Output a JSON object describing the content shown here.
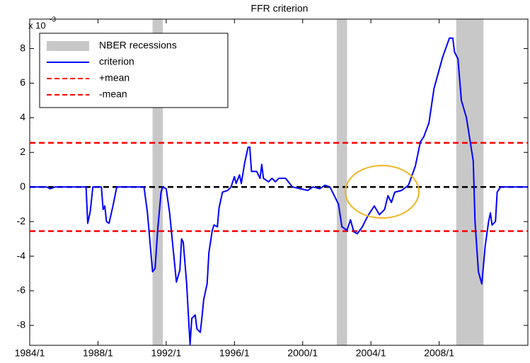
{
  "chart_data": {
    "type": "line",
    "title": "FFR criterion",
    "y_multiplier": {
      "base": "x 10",
      "exponent": "-3"
    },
    "xlim": [
      1984,
      2013.2
    ],
    "ylim": [
      -9.15,
      9.7
    ],
    "xticks": [
      {
        "value": 1984,
        "label": "1984/1"
      },
      {
        "value": 1988,
        "label": "1988/1"
      },
      {
        "value": 1992,
        "label": "1992/1"
      },
      {
        "value": 1996,
        "label": "1996/1"
      },
      {
        "value": 2000,
        "label": "2000/1"
      },
      {
        "value": 2004,
        "label": "2004/1"
      },
      {
        "value": 2008,
        "label": "2008/1"
      }
    ],
    "yticks": [
      -8,
      -6,
      -4,
      -2,
      0,
      2,
      4,
      6,
      8
    ],
    "legend": "upper left",
    "recessions": {
      "name": "NBER recessions",
      "color": "#c8c8c8",
      "ranges": [
        [
          1991.2,
          1991.8
        ],
        [
          2002.0,
          2002.6
        ],
        [
          2009.0,
          2010.6
        ]
      ]
    },
    "hlines": [
      {
        "name": "+mean",
        "color": "#ff0000",
        "value": 2.55
      },
      {
        "name": "-mean",
        "color": "#ff0000",
        "value": -2.55
      },
      {
        "color": "#000000",
        "value": 0
      }
    ],
    "series": [
      {
        "name": "criterion",
        "color": "#0000ff",
        "x": [
          1984,
          1985,
          1985.2,
          1985.5,
          1987.3,
          1987.4,
          1987.55,
          1987.7,
          1988.2,
          1988.3,
          1988.4,
          1988.5,
          1988.65,
          1988.9,
          1989.1,
          1990.7,
          1990.9,
          1991.2,
          1991.35,
          1991.5,
          1991.7,
          1991.8,
          1992.0,
          1992.2,
          1992.6,
          1992.8,
          1992.9,
          1993.0,
          1993.2,
          1993.3,
          1993.4,
          1993.5,
          1993.7,
          1993.8,
          1994.0,
          1994.1,
          1994.2,
          1994.4,
          1994.5,
          1994.7,
          1994.8,
          1995.0,
          1995.1,
          1995.3,
          1995.6,
          1995.8,
          1996.0,
          1996.1,
          1996.3,
          1996.4,
          1996.6,
          1996.8,
          1996.9,
          1997.0,
          1997.3,
          1997.5,
          1997.6,
          1997.7,
          1998.0,
          1998.2,
          1998.4,
          1998.6,
          1999.0,
          1999.4,
          2000.3,
          2000.6,
          2001.0,
          2001.3,
          2001.6,
          2002.1,
          2002.3,
          2002.6,
          2002.8,
          2003.0,
          2003.2,
          2003.5,
          2003.8,
          2004.2,
          2004.5,
          2004.8,
          2005.0,
          2005.2,
          2005.4,
          2005.8,
          2006.2,
          2006.6,
          2006.9,
          2007.1,
          2007.4,
          2007.7,
          2008.2,
          2008.6,
          2008.8,
          2008.9,
          2009.1,
          2009.3,
          2009.6,
          2010.0,
          2010.1,
          2010.3,
          2010.5,
          2010.7,
          2010.9,
          2011.0,
          2011.1,
          2011.3,
          2011.4,
          2011.6,
          2013.2
        ],
        "values": [
          0,
          0,
          -0.1,
          0,
          0,
          -2.1,
          -1.4,
          0,
          0,
          -1.3,
          -1.1,
          -2.0,
          -2.1,
          -1.0,
          0,
          0,
          -1.5,
          -4.9,
          -4.7,
          -2.5,
          -0.3,
          0,
          -0.1,
          -1.5,
          -5.5,
          -4.8,
          -3.0,
          -3.2,
          -5.6,
          -7.4,
          -9.1,
          -7.6,
          -7.4,
          -8.2,
          -8.4,
          -7.5,
          -6.5,
          -5.6,
          -3.8,
          -2.5,
          -2.2,
          -2.3,
          -1.2,
          -0.3,
          -0.2,
          0.0,
          0.6,
          0.2,
          0.7,
          0.2,
          1.4,
          2.3,
          2.3,
          0.9,
          0.9,
          0.5,
          1.3,
          0.5,
          0.3,
          0.5,
          0.3,
          0.5,
          0.5,
          0,
          -0.2,
          0,
          -0.1,
          0.1,
          0,
          -1.0,
          -2.3,
          -2.5,
          -1.9,
          -2.6,
          -2.7,
          -2.3,
          -1.7,
          -1.1,
          -1.6,
          -1.3,
          -0.5,
          -0.9,
          -0.3,
          -0.2,
          0.1,
          1.2,
          2.6,
          2.9,
          3.7,
          5.7,
          7.5,
          8.6,
          8.6,
          7.8,
          7.4,
          5.0,
          4.0,
          1.5,
          -2.0,
          -4.9,
          -5.6,
          -3.4,
          -2.0,
          -1.5,
          -2.2,
          -2.0,
          -0.3,
          0,
          0
        ]
      }
    ]
  }
}
